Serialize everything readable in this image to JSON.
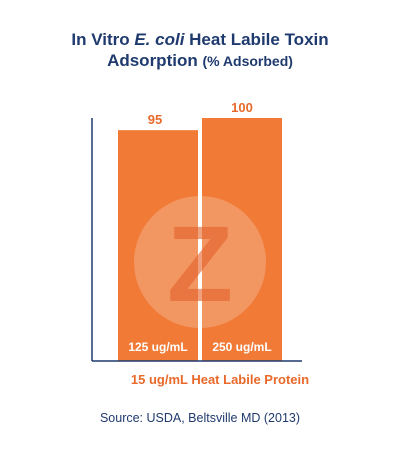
{
  "chart_data": {
    "type": "bar",
    "title_prefix": "In Vitro ",
    "title_italic": "E. coli",
    "title_suffix": " Heat Labile Toxin",
    "title_line2": "Adsorption ",
    "title_line2_paren": "(% Adsorbed)",
    "categories": [
      "125 ug/mL",
      "250 ug/mL"
    ],
    "values": [
      95,
      100
    ],
    "value_labels": [
      "95",
      "100"
    ],
    "ylim": [
      0,
      100
    ],
    "xlabel": "15 ug/mL Heat Labile Protein",
    "ylabel": "",
    "grid": false,
    "bar_color": "#f07a36",
    "label_color": "#e8692a",
    "watermark": "Z"
  },
  "source": "Source: USDA, Beltsville MD (2013)",
  "colors": {
    "title": "#1f3a6e",
    "axis": "#1f3a6e"
  }
}
